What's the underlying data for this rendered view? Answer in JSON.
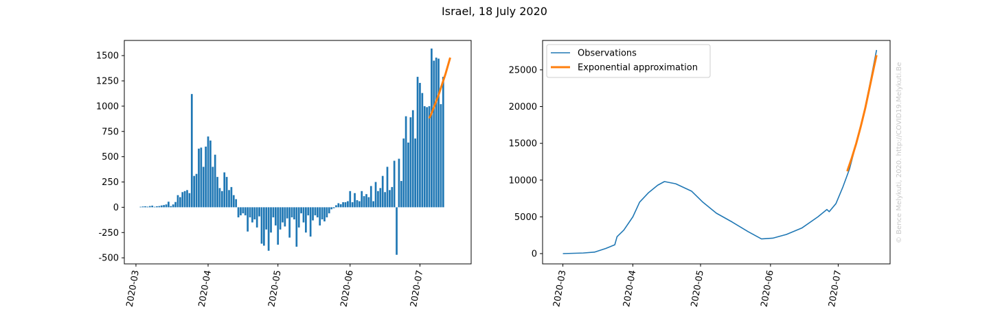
{
  "figure": {
    "title": "Israel, 18 July 2020",
    "watermark": "© Bence Melykuti, 2020. http://COVID19.Melykuti.Be"
  },
  "colors": {
    "blue": "#1f77b4",
    "orange": "#ff7f0e",
    "axis": "#000000"
  },
  "chart_data": [
    {
      "type": "bar",
      "title": "",
      "xlabel": "",
      "ylabel": "",
      "x_start": "2020-03-03",
      "x_ticks": [
        "2020-03",
        "2020-04",
        "2020-05",
        "2020-06",
        "2020-07"
      ],
      "xlim": [
        "2020-02-25",
        "2020-07-23"
      ],
      "ylim": [
        -560,
        1650
      ],
      "y_ticks": [
        -500,
        -250,
        0,
        250,
        500,
        750,
        1000,
        1250,
        1500
      ],
      "grid": false,
      "series": [
        {
          "values": [
            5,
            8,
            10,
            6,
            12,
            16,
            5,
            10,
            12,
            18,
            22,
            28,
            55,
            12,
            28,
            52,
            120,
            100,
            150,
            160,
            170,
            140,
            1120,
            310,
            330,
            580,
            590,
            400,
            600,
            700,
            660,
            400,
            520,
            300,
            190,
            160,
            345,
            300,
            170,
            200,
            120,
            80,
            -100,
            -80,
            -60,
            -80,
            -240,
            -100,
            -150,
            -120,
            -200,
            -90,
            -360,
            -380,
            -220,
            -430,
            -250,
            -100,
            -180,
            -370,
            -220,
            -150,
            -190,
            -110,
            -300,
            -100,
            -120,
            -390,
            -200,
            -60,
            -150,
            -250,
            -80,
            -290,
            -130,
            -80,
            -100,
            -180,
            -120,
            -140,
            -100,
            -60,
            -20,
            -10,
            20,
            40,
            30,
            50,
            50,
            60,
            160,
            50,
            140,
            70,
            60,
            160,
            110,
            130,
            100,
            210,
            60,
            250,
            160,
            190,
            310,
            150,
            400,
            170,
            200,
            460,
            -470,
            480,
            260,
            680,
            900,
            640,
            890,
            960,
            680,
            1290,
            1230,
            1130,
            1000,
            990,
            1000,
            1570,
            1450,
            1480,
            1470,
            1020,
            1290
          ]
        },
        {
          "type": "line",
          "x_start": "2020-07-05",
          "values": [
            880,
            930,
            990,
            1050,
            1110,
            1180,
            1250,
            1320,
            1400,
            1480
          ]
        }
      ]
    },
    {
      "type": "line",
      "title": "",
      "xlabel": "",
      "ylabel": "",
      "x_start": "2020-03-01",
      "x_ticks": [
        "2020-03",
        "2020-04",
        "2020-05",
        "2020-06",
        "2020-07"
      ],
      "xlim": [
        "2020-02-21",
        "2020-07-24"
      ],
      "ylim": [
        -1400,
        29000
      ],
      "y_ticks": [
        0,
        5000,
        10000,
        15000,
        20000,
        25000
      ],
      "grid": false,
      "legend": {
        "position": "top-left",
        "entries": [
          "Observations",
          "Exponential approximation"
        ]
      },
      "series": [
        {
          "name": "Observations",
          "points": [
            [
              "2020-03-01",
              0
            ],
            [
              "2020-03-10",
              80
            ],
            [
              "2020-03-15",
              200
            ],
            [
              "2020-03-20",
              700
            ],
            [
              "2020-03-24",
              1200
            ],
            [
              "2020-03-25",
              2300
            ],
            [
              "2020-03-28",
              3200
            ],
            [
              "2020-04-01",
              5000
            ],
            [
              "2020-04-04",
              7000
            ],
            [
              "2020-04-08",
              8300
            ],
            [
              "2020-04-12",
              9300
            ],
            [
              "2020-04-15",
              9800
            ],
            [
              "2020-04-20",
              9500
            ],
            [
              "2020-04-27",
              8500
            ],
            [
              "2020-05-02",
              7000
            ],
            [
              "2020-05-08",
              5500
            ],
            [
              "2020-05-15",
              4300
            ],
            [
              "2020-05-22",
              3000
            ],
            [
              "2020-05-28",
              2000
            ],
            [
              "2020-06-02",
              2100
            ],
            [
              "2020-06-08",
              2600
            ],
            [
              "2020-06-15",
              3500
            ],
            [
              "2020-06-22",
              5000
            ],
            [
              "2020-06-26",
              6000
            ],
            [
              "2020-06-27",
              5700
            ],
            [
              "2020-06-30",
              6800
            ],
            [
              "2020-07-03",
              9000
            ],
            [
              "2020-07-06",
              11500
            ],
            [
              "2020-07-09",
              15000
            ],
            [
              "2020-07-12",
              18500
            ],
            [
              "2020-07-15",
              23000
            ],
            [
              "2020-07-18",
              27700
            ]
          ]
        },
        {
          "name": "Exponential approximation",
          "points": [
            [
              "2020-07-05",
              11200
            ],
            [
              "2020-07-07",
              13000
            ],
            [
              "2020-07-09",
              15000
            ],
            [
              "2020-07-11",
              17300
            ],
            [
              "2020-07-13",
              19800
            ],
            [
              "2020-07-15",
              22700
            ],
            [
              "2020-07-17",
              25600
            ],
            [
              "2020-07-18",
              27000
            ]
          ]
        }
      ]
    }
  ]
}
